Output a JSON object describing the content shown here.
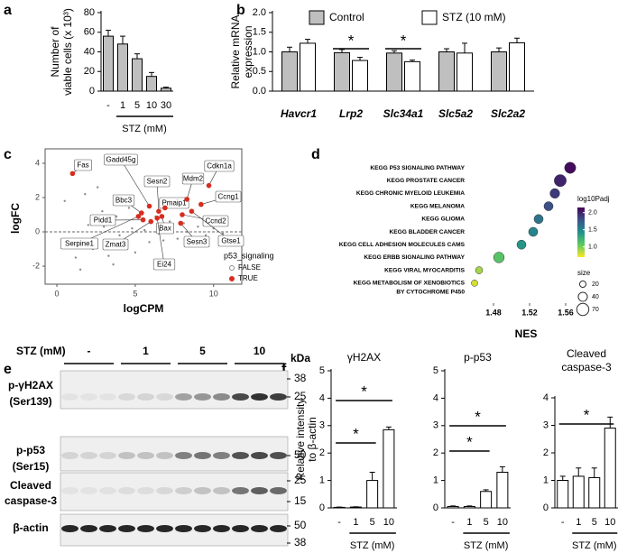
{
  "panel_labels": [
    "a",
    "b",
    "c",
    "d",
    "e",
    "f"
  ],
  "chart_data": [
    {
      "type": "bar",
      "ylabel": [
        "Number of",
        "viable cells (x 10³)"
      ],
      "xlabel": "STZ (mM)",
      "categories": [
        "-",
        "1",
        "5",
        "10",
        "30"
      ],
      "values": [
        56,
        48,
        33,
        15,
        3
      ],
      "errors": [
        6,
        8,
        5,
        4,
        1
      ],
      "color": "#bfbfbf",
      "ylim": [
        0,
        80
      ],
      "yticks": [
        0,
        20,
        40,
        60,
        80
      ]
    },
    {
      "type": "grouped_bar",
      "ylabel": [
        "Relative mRNA",
        "expression"
      ],
      "categories": [
        "Havcr1",
        "Lrp2",
        "Slc34a1",
        "Slc5a2",
        "Slc2a2"
      ],
      "series": [
        {
          "name": "Control",
          "color": "#bfbfbf",
          "values": [
            1.0,
            0.98,
            0.97,
            1.0,
            1.0
          ],
          "errors": [
            0.12,
            0.08,
            0.06,
            0.08,
            0.1
          ]
        },
        {
          "name": "STZ (10 mM)",
          "color": "#ffffff",
          "values": [
            1.22,
            0.78,
            0.75,
            0.97,
            1.23
          ],
          "errors": [
            0.1,
            0.08,
            0.04,
            0.25,
            0.12
          ]
        }
      ],
      "ylim": [
        0,
        2
      ],
      "yticks": [
        {
          "value": 0,
          "label": "0.0"
        },
        0.5,
        {
          "value": 1,
          "label": "1.0"
        },
        1.5,
        {
          "value": 2,
          "label": "2.0"
        }
      ],
      "annotations": [
        "*",
        "*"
      ]
    },
    {
      "type": "scatter",
      "xlabel": "logCPM",
      "ylabel": "logFC",
      "xlim": [
        -0.75,
        11.8
      ],
      "ylim": [
        -3.05,
        4.84
      ],
      "xticks": [
        0,
        5,
        10
      ],
      "yticks": [
        -2,
        0,
        2,
        4
      ],
      "reference_line": 0,
      "legend": {
        "title": "p53_signaling"
      },
      "series": [
        {
          "name": "FALSE",
          "color": "#8c8c8c",
          "x": [
            0.5,
            1.2,
            1.8,
            2.3,
            2.9,
            3.3,
            3.8,
            4.2,
            4.6,
            5.0,
            5.4,
            5.9,
            6.3,
            6.8,
            7.2,
            7.7,
            8.1,
            8.6,
            9.0,
            9.5,
            10.0,
            10.6,
            2.0,
            3.0,
            4.0,
            4.8,
            5.6,
            6.5,
            7.4,
            8.3,
            1.5,
            2.6,
            3.6,
            4.4
          ],
          "values": [
            1.8,
            -1.5,
            2.2,
            -1.0,
            1.2,
            -1.4,
            0.9,
            -0.8,
            1.4,
            -1.2,
            0.7,
            -0.6,
            0.9,
            -0.5,
            0.6,
            -0.4,
            0.5,
            -0.3,
            0.3,
            -0.2,
            0.2,
            -0.1,
            0.4,
            0.3,
            -0.2,
            0.2,
            0.1,
            -0.1,
            0.1,
            0.0,
            -2.2,
            2.6,
            -1.9,
            2.0
          ]
        },
        {
          "name": "TRUE",
          "color": "#d62d20",
          "labels": [
            "Fas",
            "Gadd45g",
            "Bbc3",
            "Sesn2",
            "Pmaip1",
            "Mdm2",
            "Cdkn1a",
            "Ccng1",
            "Ccnd2",
            "Pidd1",
            "Bax",
            "Sesn3",
            "Zmat3",
            "Ei24",
            "Gtse1",
            "Serpine1"
          ],
          "x": [
            1.0,
            5.9,
            5.4,
            6.5,
            6.9,
            8.3,
            9.7,
            9.2,
            8.0,
            5.5,
            6.7,
            7.9,
            6.0,
            6.4,
            8.6,
            5.2
          ],
          "values": [
            3.4,
            1.5,
            1.1,
            1.2,
            1.4,
            1.9,
            2.7,
            1.6,
            1.0,
            0.7,
            0.9,
            0.5,
            0.6,
            0.8,
            1.2,
            0.9
          ]
        }
      ]
    },
    {
      "type": "dot",
      "xlabel": "NES",
      "categories": [
        [
          "KEGG P53 SIGNALING PATHWAY"
        ],
        [
          "KEGG PROSTATE CANCER"
        ],
        [
          "KEGG CHRONIC MYELOID LEUKEMIA"
        ],
        [
          "KEGG MELANOMA"
        ],
        [
          "KEGG GLIOMA"
        ],
        [
          "KEGG BLADDER CANCER"
        ],
        [
          "KEGG CELL ADHESION MOLECULES CAMS"
        ],
        [
          "KEGG ERBB SIGNALING PATHWAY"
        ],
        [
          "KEGG VIRAL MYOCARDITIS"
        ],
        [
          "KEGG METABOLISM OF XENOBIOTICS",
          "BY CYTOCHROME P450"
        ]
      ],
      "values": [
        1.565,
        1.554,
        1.548,
        1.541,
        1.53,
        1.524,
        1.511,
        1.486,
        1.464,
        1.459
      ],
      "color_values": [
        2.1,
        2.0,
        1.9,
        1.8,
        1.6,
        1.5,
        1.4,
        1.1,
        0.9,
        0.8
      ],
      "sizes": [
        60,
        70,
        45,
        40,
        40,
        40,
        40,
        55,
        25,
        20
      ],
      "xlim": [
        1.45,
        1.58
      ],
      "xticks": [
        1.48,
        1.52,
        1.56
      ],
      "color_legend": {
        "title": "log10Padj",
        "clim": [
          0.7,
          2.15
        ],
        "colormap": [
          "#fde725",
          "#5ec962",
          "#21918c",
          "#3b528b",
          "#440154"
        ],
        "ticks": [
          {
            "value": 1,
            "label": "1.0"
          },
          1.5,
          {
            "value": 2,
            "label": "2.0"
          }
        ]
      },
      "size_legend": {
        "title": "size",
        "ticks": [
          20,
          40,
          70
        ]
      }
    },
    {
      "type": "bar",
      "title": [
        "γH2AX"
      ],
      "ylabel": [
        "Relative intensity",
        "to β-actin"
      ],
      "xlabel": "STZ (mM)",
      "categories": [
        "-",
        "1",
        "5",
        "10"
      ],
      "values": [
        0.02,
        0.03,
        1.0,
        2.85
      ],
      "errors": [
        0.01,
        0.01,
        0.3,
        0.1
      ],
      "color": "#ffffff",
      "ylim": [
        0,
        5
      ],
      "yticks": [
        0,
        1,
        2,
        3,
        4,
        5
      ],
      "annotations": [
        "*",
        "*"
      ]
    },
    {
      "type": "bar",
      "title": [
        "p-p53"
      ],
      "xlabel": "STZ (mM)",
      "categories": [
        "-",
        "1",
        "5",
        "10"
      ],
      "values": [
        0.05,
        0.05,
        0.6,
        1.3
      ],
      "errors": [
        0.02,
        0.02,
        0.06,
        0.2
      ],
      "color": "#ffffff",
      "ylim": [
        0,
        5
      ],
      "yticks": [
        0,
        1,
        2,
        3,
        4,
        5
      ],
      "annotations": [
        "*",
        "*"
      ]
    },
    {
      "type": "bar",
      "title": [
        "Cleaved",
        "caspase-3"
      ],
      "xlabel": "STZ (mM)",
      "categories": [
        "-",
        "1",
        "5",
        "10"
      ],
      "values": [
        1.0,
        1.15,
        1.1,
        2.9
      ],
      "errors": [
        0.15,
        0.3,
        0.35,
        0.4
      ],
      "color": "#ffffff",
      "ylim": [
        0,
        4
      ],
      "yticks": [
        0,
        1,
        2,
        3,
        4
      ],
      "annotations": [
        "*"
      ]
    }
  ],
  "blot": {
    "treatment": "STZ (mM)",
    "lanes": [
      "-",
      "1",
      "5",
      "10"
    ],
    "unit": "kDa",
    "rows": [
      {
        "label": [
          "p-γH2AX",
          "(Ser139)"
        ],
        "markers": [
          "38",
          "25"
        ]
      },
      {
        "label": [
          "p-p53",
          "(Ser15)"
        ],
        "markers": [
          "50"
        ]
      },
      {
        "label": [
          "Cleaved",
          "caspase-3"
        ],
        "markers": [
          "25",
          "15"
        ]
      },
      {
        "label": [
          "β-actin"
        ],
        "markers": [
          "50",
          "38"
        ]
      }
    ]
  }
}
